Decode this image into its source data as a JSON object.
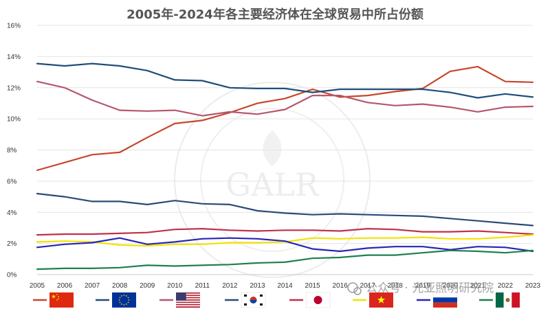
{
  "chart_data": {
    "type": "line",
    "title": "2005年-2024年各主要经济体在全球贸易中所占份额",
    "x": [
      2005,
      2006,
      2007,
      2008,
      2009,
      2010,
      2011,
      2012,
      2013,
      2014,
      2015,
      2016,
      2017,
      2018,
      2019,
      2020,
      2021,
      2022,
      2023
    ],
    "x_tick_labels": [
      "2005",
      "2006",
      "2007",
      "2008",
      "2009",
      "2010",
      "2011",
      "2012",
      "2013",
      "2014",
      "2015",
      "2016",
      "2017",
      "2018",
      "2019",
      "2020",
      "2021",
      "2022",
      "2023"
    ],
    "ylim": [
      0,
      16
    ],
    "y_ticks": [
      0,
      2,
      4,
      6,
      8,
      10,
      12,
      14,
      16
    ],
    "y_tick_labels": [
      "0%",
      "2%",
      "4%",
      "6%",
      "8%",
      "10%",
      "12%",
      "14%",
      "16%"
    ],
    "grid": "horizontal",
    "legend_position": "bottom",
    "series": [
      {
        "flag": "china",
        "color": "#c8452c",
        "values": [
          6.7,
          7.2,
          7.7,
          7.85,
          8.8,
          9.7,
          9.9,
          10.4,
          11.0,
          11.3,
          11.9,
          11.4,
          11.5,
          11.75,
          11.95,
          13.05,
          13.35,
          12.4,
          12.35
        ]
      },
      {
        "flag": "eu",
        "color": "#1f4e79",
        "values": [
          13.55,
          13.4,
          13.55,
          13.4,
          13.1,
          12.5,
          12.45,
          12.0,
          11.95,
          11.95,
          11.7,
          11.9,
          11.9,
          11.9,
          11.9,
          11.7,
          11.35,
          11.6,
          11.4
        ]
      },
      {
        "flag": "usa",
        "color": "#b5566c",
        "values": [
          12.4,
          12.0,
          11.2,
          10.55,
          10.5,
          10.55,
          10.2,
          10.45,
          10.3,
          10.6,
          11.5,
          11.5,
          11.05,
          10.85,
          10.95,
          10.75,
          10.45,
          10.75,
          10.8
        ]
      },
      {
        "flag": "korea",
        "color": "#2a4a78",
        "values": [
          5.2,
          5.0,
          4.7,
          4.7,
          4.5,
          4.75,
          4.55,
          4.5,
          4.1,
          3.95,
          3.85,
          3.9,
          3.85,
          3.8,
          3.75,
          3.6,
          3.45,
          3.3,
          3.15
        ]
      },
      {
        "flag": "japan",
        "color": "#c0304a",
        "values": [
          2.55,
          2.6,
          2.6,
          2.65,
          2.7,
          2.9,
          2.95,
          2.85,
          2.8,
          2.85,
          2.85,
          2.8,
          2.95,
          2.9,
          2.75,
          2.75,
          2.8,
          2.7,
          2.6
        ]
      },
      {
        "flag": "vietnam",
        "color": "#f2e200",
        "values": [
          2.1,
          2.15,
          2.1,
          1.9,
          1.85,
          1.95,
          1.95,
          2.05,
          2.05,
          2.1,
          2.35,
          2.3,
          2.35,
          2.35,
          2.4,
          2.3,
          2.3,
          2.4,
          2.55
        ]
      },
      {
        "flag": "russia",
        "color": "#2626b8",
        "values": [
          1.75,
          1.95,
          2.05,
          2.35,
          1.95,
          2.1,
          2.3,
          2.35,
          2.3,
          2.15,
          1.65,
          1.5,
          1.7,
          1.8,
          1.8,
          1.6,
          1.8,
          1.75,
          1.5
        ]
      },
      {
        "flag": "mexico",
        "color": "#1e7f4e",
        "values": [
          0.35,
          0.4,
          0.4,
          0.45,
          0.6,
          0.55,
          0.6,
          0.65,
          0.75,
          0.8,
          1.05,
          1.1,
          1.25,
          1.25,
          1.4,
          1.55,
          1.5,
          1.4,
          1.55
        ]
      }
    ],
    "watermark": {
      "emblem_text": "GALR",
      "caption": "公众号 · 光亚照明研究院"
    }
  }
}
